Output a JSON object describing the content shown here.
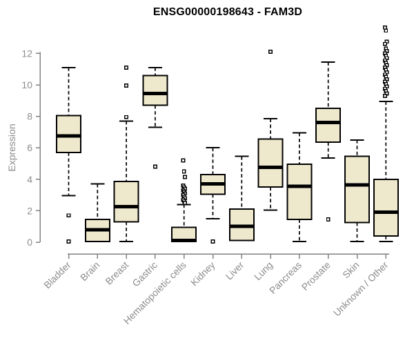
{
  "chart_data": {
    "type": "boxplot",
    "title": "ENSG00000198643 - FAM3D",
    "xlabel": "",
    "ylabel": "Expression",
    "ylim": [
      0,
      12
    ],
    "yticks": [
      0,
      2,
      4,
      6,
      8,
      10,
      12
    ],
    "grid": false,
    "legend": "none",
    "colors": {
      "box_fill": "#EEE8CD",
      "box_stroke": "#000000",
      "median": "#000000",
      "whisker": "#000000",
      "outlier_fill": "#FFFFFF",
      "outlier_stroke": "#000000",
      "axis": "#808080",
      "tick_labels": "#8C8C8C",
      "title": "#000000"
    },
    "categories": [
      "Bladder",
      "Brain",
      "Breast",
      "Gastric",
      "Hematopoietic cells",
      "Kidney",
      "Liver",
      "Lung",
      "Pancreas",
      "Prostate",
      "Skin",
      "Unknown / Other"
    ],
    "series": [
      {
        "category": "Bladder",
        "whisker_low": 2.95,
        "q1": 5.7,
        "median": 6.75,
        "q3": 8.05,
        "whisker_high": 11.1,
        "outliers": [
          1.7,
          0.05
        ]
      },
      {
        "category": "Brain",
        "whisker_low": 0.05,
        "q1": 0.05,
        "median": 0.8,
        "q3": 1.45,
        "whisker_high": 3.7,
        "outliers": []
      },
      {
        "category": "Breast",
        "whisker_low": 0.05,
        "q1": 1.3,
        "median": 2.25,
        "q3": 3.85,
        "whisker_high": 7.7,
        "outliers": [
          11.1,
          9.95,
          7.95
        ]
      },
      {
        "category": "Gastric",
        "whisker_low": 7.3,
        "q1": 8.7,
        "median": 9.45,
        "q3": 10.6,
        "whisker_high": 11.1,
        "outliers": [
          4.8
        ]
      },
      {
        "category": "Hematopoietic cells",
        "whisker_low": 0.05,
        "q1": 0.05,
        "median": 0.12,
        "q3": 0.95,
        "whisker_high": 2.4,
        "outliers": [
          5.2,
          4.5,
          4.15,
          3.6,
          3.5,
          3.4,
          3.3,
          3.2,
          3.1,
          3.0,
          2.9,
          2.8,
          2.7,
          2.6,
          2.5
        ]
      },
      {
        "category": "Kidney",
        "whisker_low": 1.5,
        "q1": 3.05,
        "median": 3.7,
        "q3": 4.3,
        "whisker_high": 6.0,
        "outliers": [
          0.05
        ]
      },
      {
        "category": "Liver",
        "whisker_low": 0.1,
        "q1": 0.1,
        "median": 1.0,
        "q3": 2.1,
        "whisker_high": 5.45,
        "outliers": []
      },
      {
        "category": "Lung",
        "whisker_low": 2.05,
        "q1": 3.5,
        "median": 4.75,
        "q3": 6.55,
        "whisker_high": 7.85,
        "outliers": [
          12.1
        ]
      },
      {
        "category": "Pancreas",
        "whisker_low": 0.05,
        "q1": 1.45,
        "median": 3.55,
        "q3": 4.95,
        "whisker_high": 6.95,
        "outliers": []
      },
      {
        "category": "Prostate",
        "whisker_low": 5.35,
        "q1": 6.35,
        "median": 7.6,
        "q3": 8.5,
        "whisker_high": 11.45,
        "outliers": [
          1.45
        ]
      },
      {
        "category": "Skin",
        "whisker_low": 0.05,
        "q1": 1.25,
        "median": 3.65,
        "q3": 5.45,
        "whisker_high": 6.5,
        "outliers": []
      },
      {
        "category": "Unknown / Other",
        "whisker_low": 0.05,
        "q1": 0.4,
        "median": 1.9,
        "q3": 4.0,
        "whisker_high": 8.95,
        "outliers": [
          13.65,
          13.45,
          12.75,
          12.6,
          12.3,
          12.15,
          12.0,
          11.85,
          11.7,
          11.55,
          11.4,
          11.25,
          11.1,
          10.95,
          10.8,
          10.65,
          10.5,
          10.35,
          10.2,
          10.05,
          9.9,
          9.75,
          9.6,
          9.45,
          9.3
        ]
      }
    ]
  }
}
